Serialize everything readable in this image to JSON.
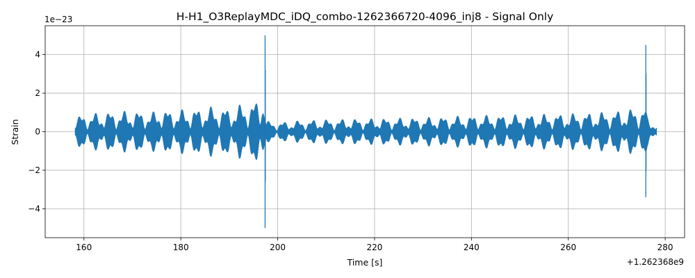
{
  "chart_data": {
    "type": "line",
    "title": "H-H1_O3ReplayMDC_iDQ_combo-1262366720-4096_inj8 - Signal Only",
    "xlabel": "Time [s]",
    "ylabel": "Strain",
    "x_offset_label": "+1.262368e9",
    "y_scale_label": "1e−23",
    "xlim": [
      152,
      284
    ],
    "ylim": [
      -5.5,
      5.5
    ],
    "x_ticks": [
      160,
      180,
      200,
      220,
      240,
      260,
      280
    ],
    "x_tick_labels": [
      "160",
      "180",
      "200",
      "220",
      "240",
      "260",
      "280"
    ],
    "y_ticks": [
      -4,
      -2,
      0,
      2,
      4
    ],
    "y_tick_labels": [
      "−4",
      "−2",
      "0",
      "2",
      "4"
    ],
    "grid": true,
    "series": [
      {
        "color": "#1f77b4",
        "envelope_x": [
          158.2,
          160,
          163,
          166,
          170,
          174,
          175.5,
          178,
          180,
          183,
          186,
          188,
          190,
          192,
          194,
          195.5,
          196.5,
          197.0,
          197.3,
          197.5,
          197.6,
          198.0,
          200,
          205,
          210,
          220,
          230,
          240,
          250,
          260,
          265,
          270,
          273,
          275,
          275.8,
          276.0,
          276.3,
          277,
          278.2
        ],
        "envelope_y": [
          0.8,
          0.9,
          1.0,
          1.05,
          1.1,
          1.0,
          1.2,
          1.1,
          1.15,
          1.2,
          1.3,
          1.3,
          1.2,
          1.4,
          1.5,
          1.6,
          1.8,
          2.3,
          2.1,
          1.2,
          0.6,
          0.55,
          0.5,
          0.6,
          0.65,
          0.7,
          0.75,
          0.85,
          0.9,
          0.95,
          1.0,
          1.1,
          1.2,
          1.3,
          1.4,
          1.2,
          0.8,
          0.6,
          0.5
        ],
        "spikes": [
          {
            "x": 197.4,
            "ymax": 5.0,
            "ymin": -5.0
          },
          {
            "x": 197.45,
            "ymax": 3.2,
            "ymin": -2.6
          },
          {
            "x": 276.0,
            "ymax": 4.5,
            "ymin": -3.4
          },
          {
            "x": 276.05,
            "ymax": 3.0,
            "ymin": -2.0
          }
        ]
      }
    ]
  }
}
